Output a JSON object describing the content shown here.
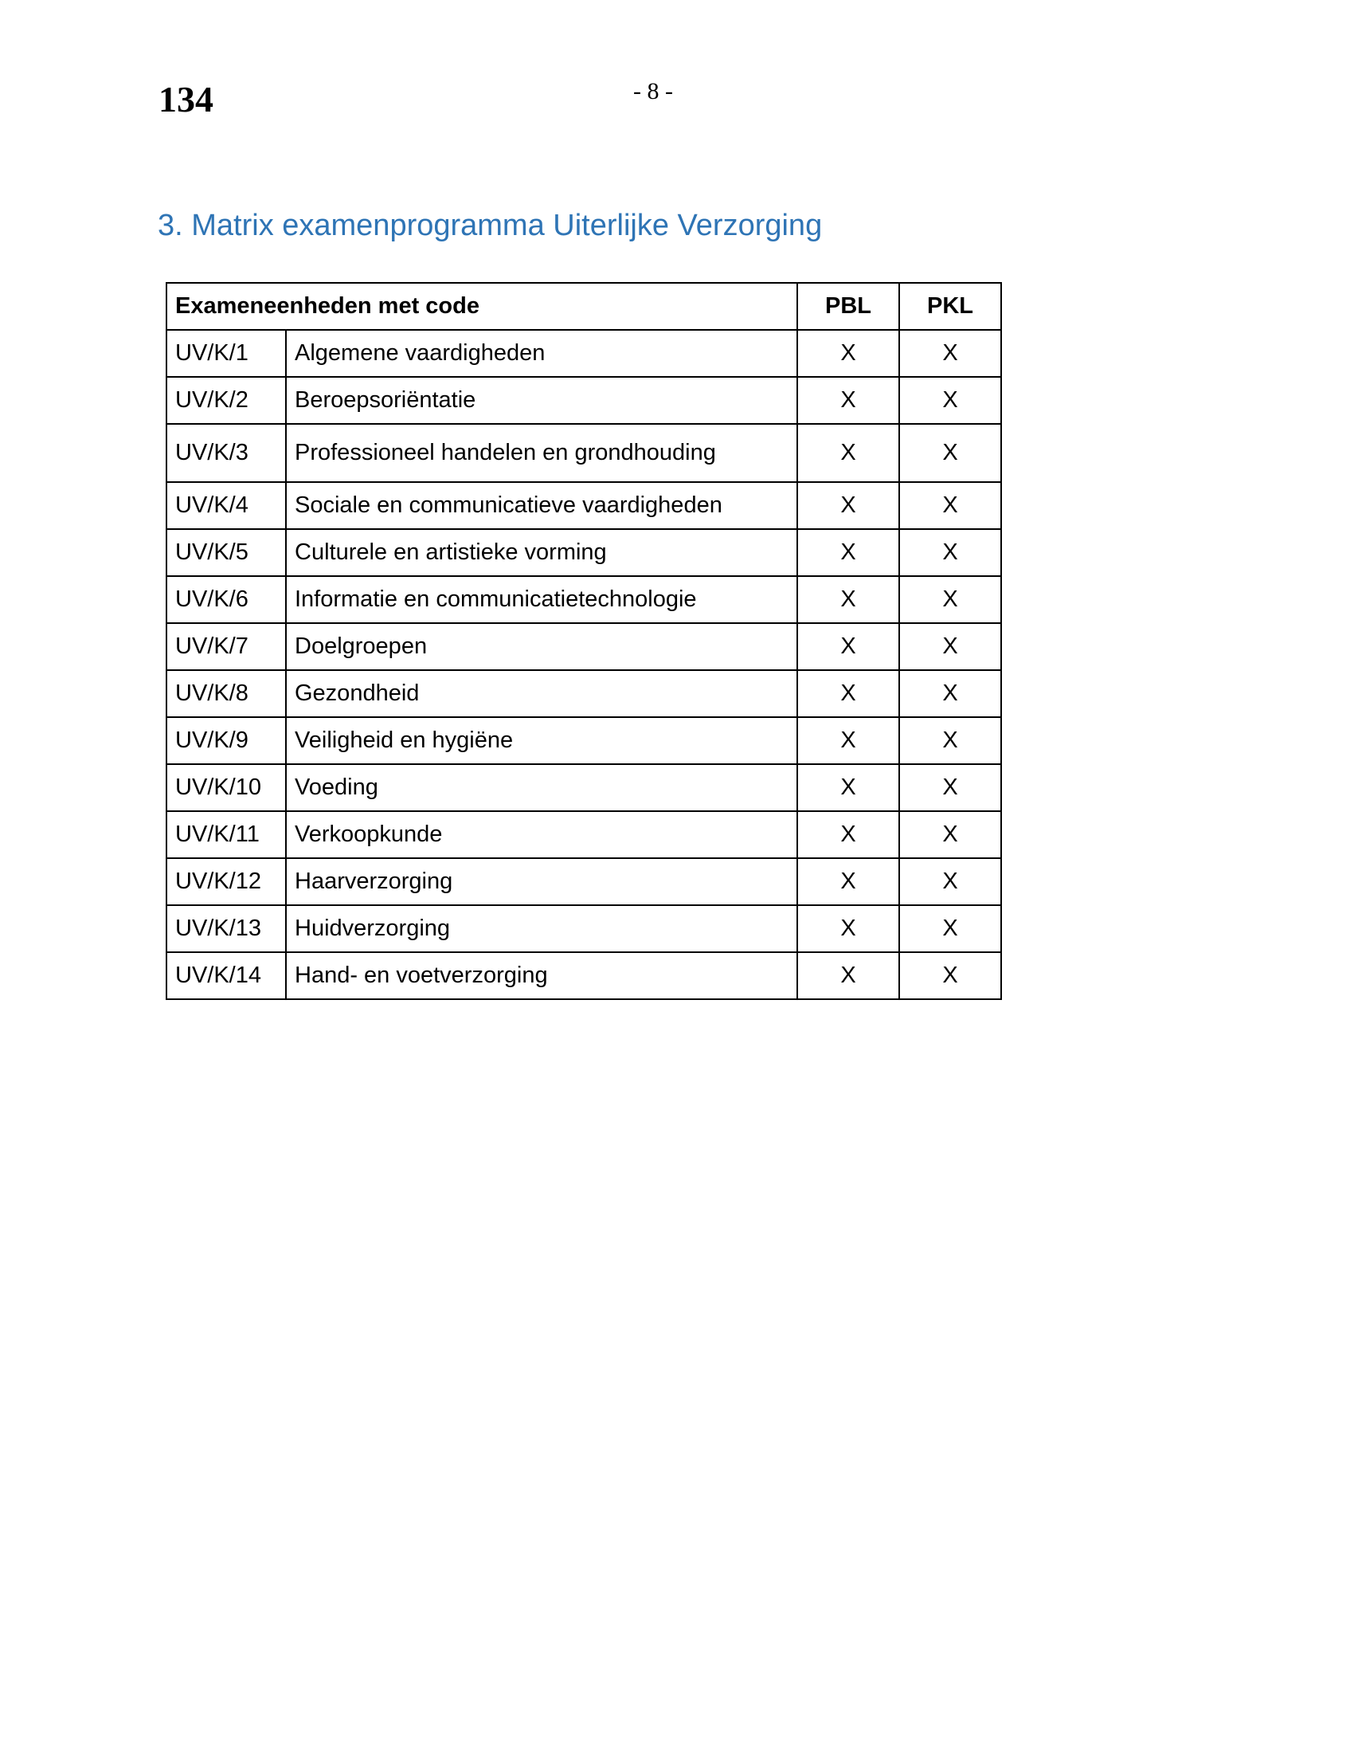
{
  "page_number": "134",
  "folio": "- 8 -",
  "title": "3. Matrix examenprogramma Uiterlijke Verzorging",
  "title_color": "#2e74b5",
  "table": {
    "header": {
      "units": "Exameneenheden met code",
      "pbl": "PBL",
      "pkl": "PKL"
    },
    "rows": [
      {
        "code": "UV/K/1",
        "name": "Algemene vaardigheden",
        "pbl": "X",
        "pkl": "X"
      },
      {
        "code": "UV/K/2",
        "name": "Beroepsoriëntatie",
        "pbl": "X",
        "pkl": "X"
      },
      {
        "code": "UV/K/3",
        "name": "Professioneel handelen en grondhouding",
        "pbl": "X",
        "pkl": "X"
      },
      {
        "code": "UV/K/4",
        "name": "Sociale en communicatieve vaardigheden",
        "pbl": "X",
        "pkl": "X"
      },
      {
        "code": "UV/K/5",
        "name": "Culturele en artistieke vorming",
        "pbl": "X",
        "pkl": "X"
      },
      {
        "code": "UV/K/6",
        "name": "Informatie en communicatietechnologie",
        "pbl": "X",
        "pkl": "X"
      },
      {
        "code": "UV/K/7",
        "name": "Doelgroepen",
        "pbl": "X",
        "pkl": "X"
      },
      {
        "code": "UV/K/8",
        "name": "Gezondheid",
        "pbl": "X",
        "pkl": "X"
      },
      {
        "code": "UV/K/9",
        "name": "Veiligheid en hygiëne",
        "pbl": "X",
        "pkl": "X"
      },
      {
        "code": "UV/K/10",
        "name": "Voeding",
        "pbl": "X",
        "pkl": "X"
      },
      {
        "code": "UV/K/11",
        "name": "Verkoopkunde",
        "pbl": "X",
        "pkl": "X"
      },
      {
        "code": "UV/K/12",
        "name": "Haarverzorging",
        "pbl": "X",
        "pkl": "X"
      },
      {
        "code": "UV/K/13",
        "name": "Huidverzorging",
        "pbl": "X",
        "pkl": "X"
      },
      {
        "code": "UV/K/14",
        "name": "Hand- en voetverzorging",
        "pbl": "X",
        "pkl": "X"
      }
    ]
  }
}
